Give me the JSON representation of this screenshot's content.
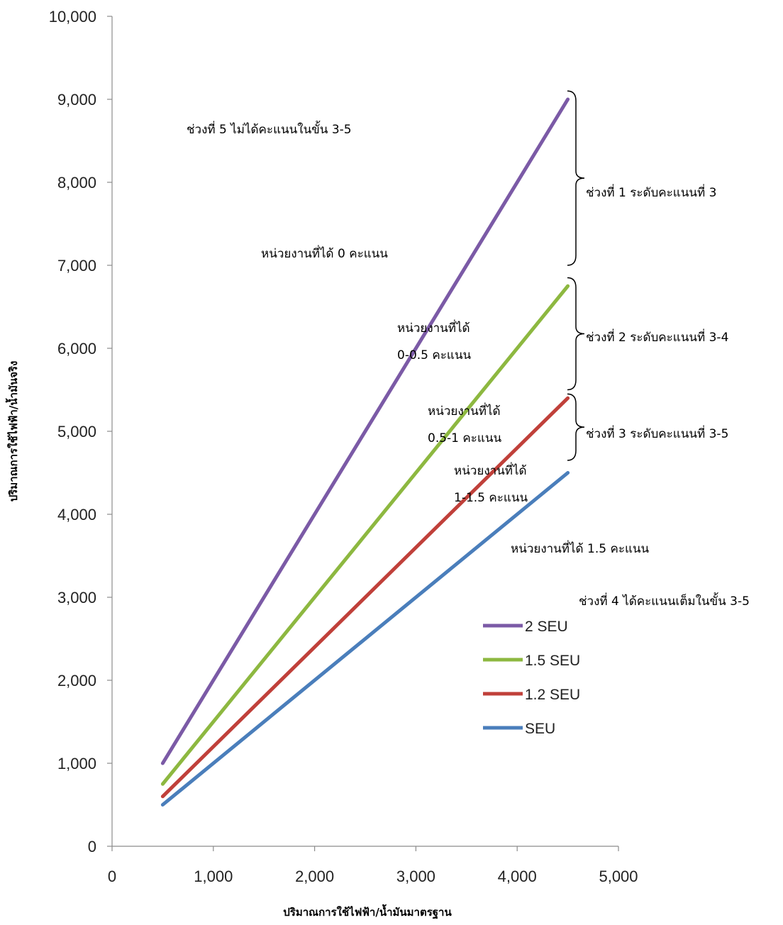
{
  "chart_data": {
    "type": "line",
    "xlabel": "ปริมาณการใช้ไฟฟ้า/น้ำมันมาตรฐาน",
    "ylabel": "ปริมาณการใช้ไฟฟ้า/น้ำมันจริง",
    "xlim": [
      0,
      5000
    ],
    "ylim": [
      0,
      10000
    ],
    "x_ticks": [
      0,
      1000,
      2000,
      3000,
      4000,
      5000
    ],
    "x_tick_labels": [
      "0",
      "1,000",
      "2,000",
      "3,000",
      "4,000",
      "5,000"
    ],
    "y_ticks": [
      0,
      1000,
      2000,
      3000,
      4000,
      5000,
      6000,
      7000,
      8000,
      9000,
      10000
    ],
    "y_tick_labels": [
      "0",
      "1,000",
      "2,000",
      "3,000",
      "4,000",
      "5,000",
      "6,000",
      "7,000",
      "8,000",
      "9,000",
      "10,000"
    ],
    "grid": false,
    "legend_position": "bottom-right",
    "series": [
      {
        "name": "2 SEU",
        "color": "#7B5AA6",
        "x": [
          500,
          4500
        ],
        "y": [
          1000,
          9000
        ]
      },
      {
        "name": "1.5 SEU",
        "color": "#8DB840",
        "x": [
          500,
          4500
        ],
        "y": [
          750,
          6750
        ]
      },
      {
        "name": "1.2 SEU",
        "color": "#C0403A",
        "x": [
          500,
          4500
        ],
        "y": [
          600,
          5400
        ]
      },
      {
        "name": "SEU",
        "color": "#4A7EBB",
        "x": [
          500,
          4500
        ],
        "y": [
          500,
          4500
        ]
      }
    ],
    "legend_order": [
      0,
      1,
      2,
      3
    ],
    "annotations": [
      {
        "key": "zone5",
        "lines": [
          "ช่วงที่ 5 ไม่ได้คะแนนในขั้น 3-5"
        ]
      },
      {
        "key": "zone5_score",
        "lines": [
          "หน่วยงานที่ได้ 0 คะแนน"
        ]
      },
      {
        "key": "zone1",
        "lines": [
          "ช่วงที่ 1 ระดับคะแนนที่ 3"
        ]
      },
      {
        "key": "zone2",
        "lines": [
          "ช่วงที่ 2 ระดับคะแนนที่ 3-4"
        ]
      },
      {
        "key": "zone3",
        "lines": [
          "ช่วงที่ 3 ระดับคะแนนที่ 3-5"
        ]
      },
      {
        "key": "score_0_05",
        "lines": [
          "หน่วยงานที่ได้",
          "0-0.5 คะแนน"
        ]
      },
      {
        "key": "score_05_1",
        "lines": [
          "หน่วยงานที่ได้",
          "0.5-1 คะแนน"
        ]
      },
      {
        "key": "score_1_15",
        "lines": [
          "หน่วยงานที่ได้",
          "1-1.5 คะแนน"
        ]
      },
      {
        "key": "score_15",
        "lines": [
          "หน่วยงานที่ได้ 1.5 คะแนน"
        ]
      },
      {
        "key": "zone4",
        "lines": [
          "ช่วงที่ 4 ได้คะแนนเต็มในขั้น 3-5"
        ]
      }
    ],
    "braces": [
      {
        "key": "zone1",
        "y_from": 7000,
        "y_to": 9100
      },
      {
        "key": "zone2",
        "y_from": 5500,
        "y_to": 6850
      },
      {
        "key": "zone3",
        "y_from": 4650,
        "y_to": 5450
      }
    ]
  }
}
